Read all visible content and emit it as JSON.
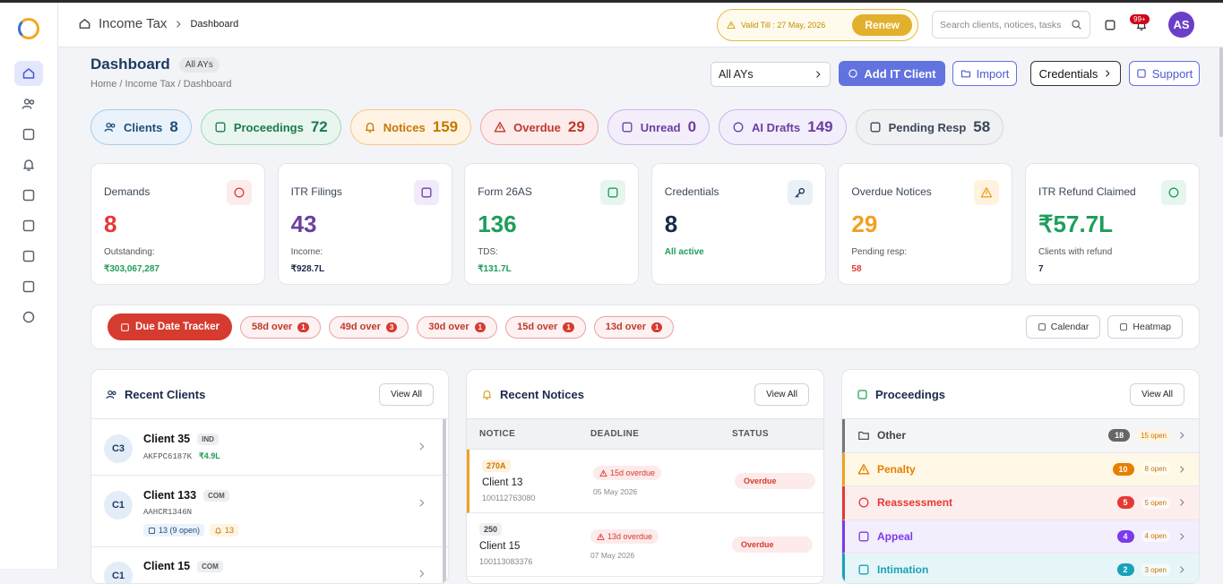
{
  "topbar": {
    "breadcrumb": [
      "Income Tax",
      "Dashboard"
    ],
    "validity": "Valid Till : 27 May, 2026",
    "renew": "Renew",
    "search_placeholder": "Search clients, notices, tasks",
    "notification_badge": "99+",
    "avatar": "AS"
  },
  "header": {
    "title": "Dashboard",
    "ay_chip": "All AYs",
    "breadcrumb": "Home / Income Tax / Dashboard",
    "ay_select": "All AYs",
    "buttons": [
      "Add IT Client",
      "Import",
      "Credentials",
      "Support"
    ]
  },
  "pills": [
    {
      "label": "Clients",
      "count": "8"
    },
    {
      "label": "Proceedings",
      "count": "72"
    },
    {
      "label": "Notices",
      "count": "159"
    },
    {
      "label": "Overdue",
      "count": "29"
    },
    {
      "label": "Unread",
      "count": "0"
    },
    {
      "label": "AI Drafts",
      "count": "149"
    },
    {
      "label": "Pending Resp",
      "count": "58"
    }
  ],
  "stat_cards": [
    {
      "title": "Demands",
      "value": "8",
      "sub_label": "Outstanding:",
      "sub_value": "₹303,067,287"
    },
    {
      "title": "ITR Filings",
      "value": "43",
      "sub_label": "Income:",
      "sub_value": "₹928.7L"
    },
    {
      "title": "Form 26AS",
      "value": "136",
      "sub_label": "TDS:",
      "sub_value": "₹131.7L"
    },
    {
      "title": "Credentials",
      "value": "8",
      "sub_value": "All active"
    },
    {
      "title": "Overdue Notices",
      "value": "29",
      "sub_label": "Pending resp:",
      "sub_value": "58"
    },
    {
      "title": "ITR Refund Claimed",
      "value": "₹57.7L",
      "sub_label": "Clients with refund",
      "sub_value": "7"
    }
  ],
  "due_tracker": {
    "title": "Due Date Tracker",
    "items": [
      {
        "label": "58d over",
        "count": "1"
      },
      {
        "label": "49d over",
        "count": "3"
      },
      {
        "label": "30d over",
        "count": "1"
      },
      {
        "label": "15d over",
        "count": "1"
      },
      {
        "label": "13d over",
        "count": "1"
      }
    ],
    "buttons": [
      "Calendar",
      "Heatmap"
    ]
  },
  "recent_clients": {
    "title": "Recent Clients",
    "action": "View All",
    "rows": [
      {
        "avatar": "C3",
        "name": "Client 35",
        "type": "IND",
        "pan": "AKFPC6187K",
        "amount": "₹4.9L"
      },
      {
        "avatar": "C1",
        "name": "Client 133",
        "type": "COM",
        "pan": "AAHCR1346N",
        "proceedings": "13 (9 open)",
        "notices": "13"
      },
      {
        "avatar": "C1",
        "name": "Client 15",
        "type": "COM"
      }
    ]
  },
  "recent_notices": {
    "title": "Recent Notices",
    "action": "View All",
    "columns": [
      "NOTICE",
      "DEADLINE",
      "STATUS"
    ],
    "rows": [
      {
        "section": "270A",
        "client": "Client 13",
        "ref": "100112763080",
        "overdue": "15d overdue",
        "deadline": "05 May 2026",
        "status": "Overdue"
      },
      {
        "section": "250",
        "client": "Client 15",
        "ref": "100113083376",
        "overdue": "13d overdue",
        "deadline": "07 May 2026",
        "status": "Overdue"
      }
    ]
  },
  "proceedings": {
    "title": "Proceedings",
    "action": "View All",
    "rows": [
      {
        "name": "Other",
        "count": "18",
        "open": "15 open"
      },
      {
        "name": "Penalty",
        "count": "10",
        "open": "8 open"
      },
      {
        "name": "Reassessment",
        "count": "5",
        "open": "5 open"
      },
      {
        "name": "Appeal",
        "count": "4",
        "open": "4 open"
      },
      {
        "name": "Intimation",
        "count": "2",
        "open": "3 open"
      }
    ]
  }
}
